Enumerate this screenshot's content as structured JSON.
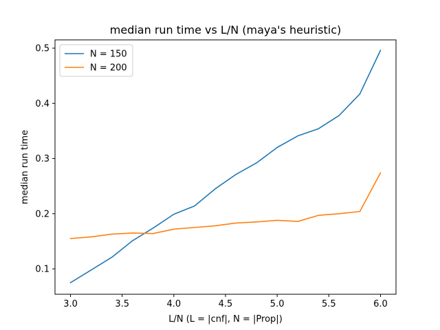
{
  "chart_data": {
    "type": "line",
    "title": "median run time vs L/N (maya's heuristic)",
    "xlabel": "L/N (L = |cnf|, N = |Prop|)",
    "ylabel": "median run time",
    "xlim": [
      2.85,
      6.15
    ],
    "ylim": [
      0.054,
      0.515
    ],
    "xticks": [
      3.0,
      3.5,
      4.0,
      4.5,
      5.0,
      5.5,
      6.0
    ],
    "xtick_labels": [
      "3.0",
      "3.5",
      "4.0",
      "4.5",
      "5.0",
      "5.5",
      "6.0"
    ],
    "yticks": [
      0.1,
      0.2,
      0.3,
      0.4,
      0.5
    ],
    "ytick_labels": [
      "0.1",
      "0.2",
      "0.3",
      "0.4",
      "0.5"
    ],
    "grid": false,
    "legend": "upper-left",
    "x": [
      3.0,
      3.2,
      3.4,
      3.6,
      3.8,
      4.0,
      4.2,
      4.4,
      4.6,
      4.8,
      5.0,
      5.2,
      5.4,
      5.6,
      5.8,
      6.0
    ],
    "series": [
      {
        "name": "N = 150",
        "color": "#1f77b4",
        "values": [
          0.075,
          0.098,
          0.121,
          0.151,
          0.174,
          0.199,
          0.214,
          0.245,
          0.271,
          0.292,
          0.32,
          0.341,
          0.354,
          0.378,
          0.417,
          0.496
        ]
      },
      {
        "name": "N = 200",
        "color": "#ff7f0e",
        "values": [
          0.155,
          0.158,
          0.163,
          0.165,
          0.164,
          0.172,
          0.175,
          0.178,
          0.183,
          0.185,
          0.188,
          0.186,
          0.197,
          0.2,
          0.204,
          0.274
        ]
      }
    ]
  }
}
